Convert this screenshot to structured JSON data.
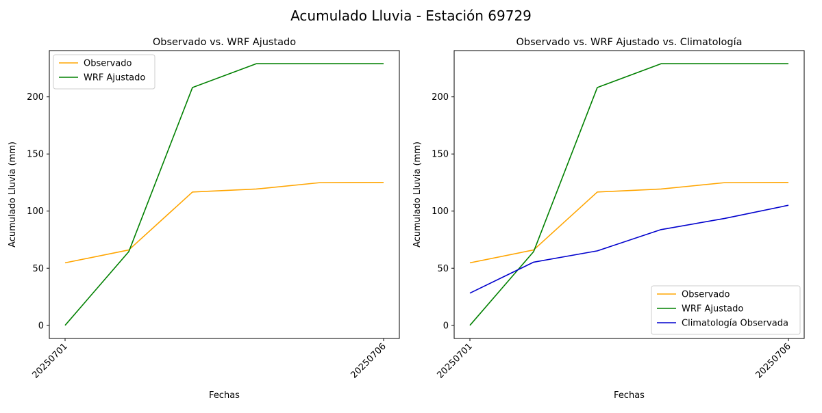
{
  "figure": {
    "title": "Acumulado Lluvia - Estación 69729"
  },
  "chart_data": [
    {
      "type": "line",
      "title": "Observado vs. WRF Ajustado",
      "xlabel": "Fechas",
      "ylabel": "Acumulado Lluvia (mm)",
      "x": [
        "20250701",
        "20250702",
        "20250703",
        "20250704",
        "20250705",
        "20250706"
      ],
      "xticks": [
        "20250701",
        "20250706"
      ],
      "yticks": [
        0,
        50,
        100,
        150,
        200
      ],
      "ylim": [
        -11.5,
        240.5
      ],
      "legend_position": "upper left",
      "series": [
        {
          "name": "Observado",
          "color": "#ffa500",
          "values": [
            54.7,
            66.0,
            116.7,
            119.3,
            124.9,
            125.1
          ]
        },
        {
          "name": "WRF Ajustado",
          "color": "#008000",
          "values": [
            0.0,
            64.5,
            208.2,
            229.0,
            229.0,
            229.0
          ]
        }
      ]
    },
    {
      "type": "line",
      "title": "Observado vs. WRF Ajustado vs. Climatología",
      "xlabel": "Fechas",
      "ylabel": "Acumulado Lluvia (mm)",
      "x": [
        "20250701",
        "20250702",
        "20250703",
        "20250704",
        "20250705",
        "20250706"
      ],
      "xticks": [
        "20250701",
        "20250706"
      ],
      "yticks": [
        0,
        50,
        100,
        150,
        200
      ],
      "ylim": [
        -11.5,
        240.5
      ],
      "legend_position": "lower right",
      "series": [
        {
          "name": "Observado",
          "color": "#ffa500",
          "values": [
            54.7,
            66.0,
            116.7,
            119.3,
            124.9,
            125.1
          ]
        },
        {
          "name": "WRF Ajustado",
          "color": "#008000",
          "values": [
            0.0,
            64.5,
            208.2,
            229.0,
            229.0,
            229.0
          ]
        },
        {
          "name": "Climatología Observada",
          "color": "#0000cd",
          "values": [
            28.2,
            55.3,
            65.2,
            83.8,
            93.6,
            105.1
          ]
        }
      ]
    }
  ]
}
